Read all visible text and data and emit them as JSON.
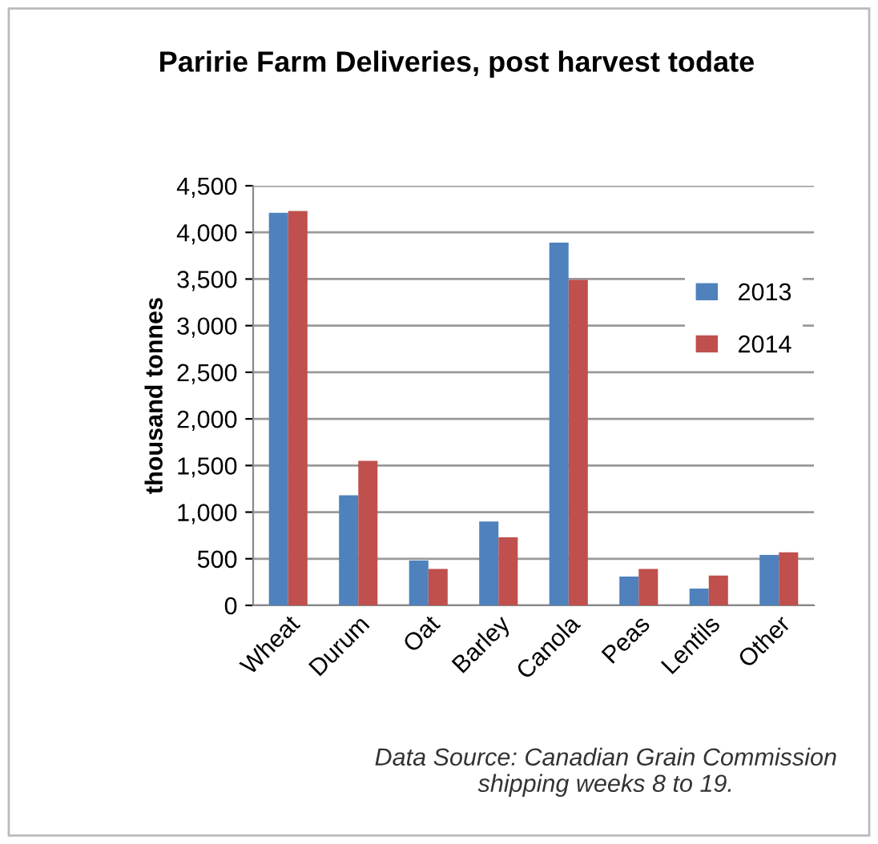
{
  "chart_data": {
    "type": "bar",
    "title": "Paririe Farm Deliveries, post harvest todate",
    "ylabel": "thousand tonnes",
    "categories": [
      "Wheat",
      "Durum",
      "Oat",
      "Barley",
      "Canola",
      "Peas",
      "Lentils",
      "Other"
    ],
    "series": [
      {
        "name": "2013",
        "color": "#4f81bd",
        "values": [
          4210,
          1180,
          480,
          900,
          3890,
          310,
          180,
          540
        ]
      },
      {
        "name": "2014",
        "color": "#c0504d",
        "values": [
          4230,
          1550,
          390,
          730,
          3490,
          390,
          320,
          570
        ]
      }
    ],
    "ylim": [
      0,
      4500
    ],
    "yticks": [
      {
        "value": 0,
        "label": "0"
      },
      {
        "value": 500,
        "label": "500"
      },
      {
        "value": 1000,
        "label": "1,000"
      },
      {
        "value": 1500,
        "label": "1,500"
      },
      {
        "value": 2000,
        "label": "2,000"
      },
      {
        "value": 2500,
        "label": "2,500"
      },
      {
        "value": 3000,
        "label": "3,000"
      },
      {
        "value": 3500,
        "label": "3,500"
      },
      {
        "value": 4000,
        "label": "4,000"
      },
      {
        "value": 4500,
        "label": "4,500"
      }
    ],
    "grid": "y",
    "legend": "right",
    "annotations": [
      "Data Source: Canadian Grain Commission\nshipping weeks 8 to 19."
    ]
  }
}
